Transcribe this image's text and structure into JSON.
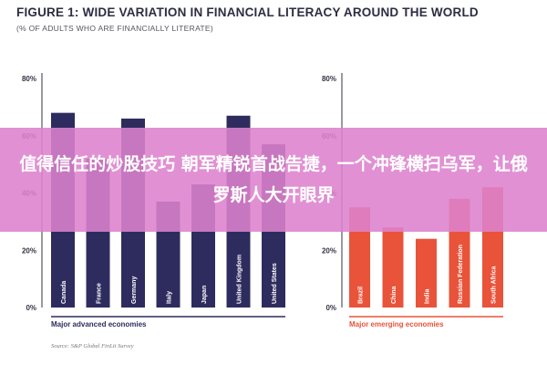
{
  "figure": {
    "title": "FIGURE 1: WIDE VARIATION IN FINANCIAL LITERACY AROUND THE WORLD",
    "subtitle": "(% OF ADULTS WHO ARE FINANCIALLY LITERATE)",
    "source": "Source: S&P Global FinLit Survey"
  },
  "overlay": {
    "text": "值得信任的炒股技巧 朝军精锐首战告捷，一个冲锋横扫乌军，让俄罗斯人大开眼界"
  },
  "colors": {
    "advanced": "#2e2c5e",
    "emerging": "#e8533a",
    "axis": "#333344",
    "gridline": "#dddddd"
  },
  "chart_data": [
    {
      "type": "bar",
      "group_label": "Major advanced economies",
      "categories": [
        "Canada",
        "France",
        "Germany",
        "Italy",
        "Japan",
        "United Kingdom",
        "United States"
      ],
      "values": [
        68,
        52,
        66,
        37,
        43,
        67,
        57
      ],
      "ylim": [
        0,
        80
      ],
      "yticks": [
        "0%",
        "20%",
        "40%",
        "60%",
        "80%"
      ],
      "grid": false,
      "legend": "none"
    },
    {
      "type": "bar",
      "group_label": "Major emerging economies",
      "categories": [
        "Brazil",
        "China",
        "India",
        "Russian Federation",
        "South Africa"
      ],
      "values": [
        35,
        28,
        24,
        38,
        42
      ],
      "ylim": [
        0,
        80
      ],
      "yticks": [
        "0%",
        "20%",
        "40%",
        "60%",
        "80%"
      ],
      "grid": false,
      "legend": "none"
    }
  ]
}
